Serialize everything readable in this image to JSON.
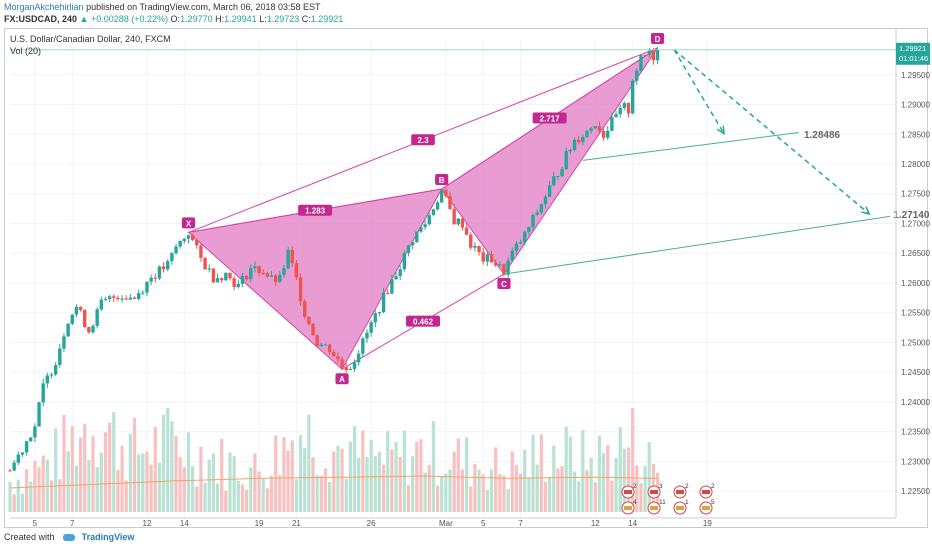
{
  "header": {
    "author": "MorganAkchehirlian",
    "published": "published on TradingView.com, March 06, 2018 03:58 EST",
    "symbol": "FX:USDCAD, 240",
    "change": "+0.00288 (+0.22%)",
    "ohlc": {
      "o_label": "O:",
      "o": "1.29770",
      "h_label": "H:",
      "h": "1.29941",
      "l_label": "L:",
      "l": "1.29723",
      "c_label": "C:",
      "c": "1.29921"
    },
    "last_price": "1.29921"
  },
  "legend": {
    "title": "U.S. Dollar/Canadian Dollar, 240, FXCM",
    "vol": "Vol (20)"
  },
  "footer": {
    "created_with": "Created with",
    "brand": "TradingView"
  },
  "colors": {
    "up": "#26a69a",
    "down": "#ef5350",
    "pattern_fill": "#e27bc3",
    "pattern_line": "#d146a8",
    "label_bg": "#c2288f",
    "trend": "#4cae8c",
    "target_arrow": "#26a69a"
  },
  "chart_data": {
    "type": "candlestick",
    "symbol": "USDCAD",
    "timeframe": "240",
    "ylim": [
      1.2215,
      1.2995
    ],
    "y_ticks": [
      "1.29500",
      "1.29000",
      "1.28500",
      "1.28000",
      "1.27500",
      "1.27000",
      "1.26500",
      "1.26000",
      "1.25500",
      "1.25000",
      "1.24500",
      "1.24000",
      "1.23500",
      "1.23000",
      "1.22500"
    ],
    "x_ticks": [
      "5",
      "7",
      "12",
      "14",
      "19",
      "21",
      "26",
      "Mar",
      "5",
      "7",
      "12",
      "14",
      "19"
    ],
    "price_labels": [
      "1.29921",
      "01:01:46"
    ],
    "x_range": [
      0,
      168
    ],
    "close_path": [
      [
        0,
        1.2285
      ],
      [
        6,
        1.236
      ],
      [
        8,
        1.2425
      ],
      [
        11,
        1.247
      ],
      [
        14,
        1.254
      ],
      [
        16,
        1.256
      ],
      [
        19,
        1.252
      ],
      [
        22,
        1.2565
      ],
      [
        26,
        1.258
      ],
      [
        30,
        1.2575
      ],
      [
        34,
        1.261
      ],
      [
        38,
        1.263
      ],
      [
        40,
        1.266
      ],
      [
        43,
        1.2685
      ],
      [
        46,
        1.264
      ],
      [
        49,
        1.261
      ],
      [
        52,
        1.2615
      ],
      [
        55,
        1.2595
      ],
      [
        58,
        1.2625
      ],
      [
        61,
        1.262
      ],
      [
        63,
        1.2605
      ],
      [
        65,
        1.2605
      ],
      [
        67,
        1.265
      ],
      [
        69,
        1.2605
      ],
      [
        71,
        1.255
      ],
      [
        74,
        1.25
      ],
      [
        77,
        1.249
      ],
      [
        80,
        1.246
      ],
      [
        82,
        1.246
      ],
      [
        85,
        1.25
      ],
      [
        88,
        1.2545
      ],
      [
        91,
        1.259
      ],
      [
        94,
        1.263
      ],
      [
        97,
        1.2675
      ],
      [
        100,
        1.27
      ],
      [
        104,
        1.2755
      ],
      [
        107,
        1.2705
      ],
      [
        109,
        1.27
      ],
      [
        111,
        1.2665
      ],
      [
        114,
        1.264
      ],
      [
        116,
        1.264
      ],
      [
        118,
        1.2625
      ],
      [
        119,
        1.262
      ],
      [
        121,
        1.265
      ],
      [
        124,
        1.268
      ],
      [
        127,
        1.272
      ],
      [
        130,
        1.276
      ],
      [
        133,
        1.28
      ],
      [
        136,
        1.284
      ],
      [
        139,
        1.2855
      ],
      [
        141,
        1.287
      ],
      [
        143,
        1.285
      ],
      [
        144,
        1.286
      ],
      [
        146,
        1.288
      ],
      [
        148,
        1.2895
      ],
      [
        149,
        1.289
      ],
      [
        150,
        1.2945
      ],
      [
        152,
        1.2975
      ],
      [
        154,
        1.299
      ],
      [
        155,
        1.298
      ],
      [
        156,
        1.2992
      ]
    ],
    "volume_path": [
      [
        0,
        3
      ],
      [
        10,
        5
      ],
      [
        20,
        9
      ],
      [
        30,
        6
      ],
      [
        40,
        7
      ],
      [
        50,
        5
      ],
      [
        60,
        4
      ],
      [
        70,
        8
      ],
      [
        80,
        6
      ],
      [
        90,
        5
      ],
      [
        100,
        6
      ],
      [
        110,
        5
      ],
      [
        120,
        4
      ],
      [
        130,
        6
      ],
      [
        140,
        5
      ],
      [
        150,
        7
      ],
      [
        156,
        4
      ]
    ],
    "volume_ma": [
      [
        0,
        2.0
      ],
      [
        20,
        2.3
      ],
      [
        40,
        2.6
      ],
      [
        60,
        2.8
      ],
      [
        80,
        2.9
      ],
      [
        100,
        3.0
      ],
      [
        120,
        2.8
      ],
      [
        140,
        2.9
      ],
      [
        156,
        2.8
      ]
    ],
    "pattern": {
      "points": [
        {
          "label": "X",
          "x": 43,
          "y": 1.2685
        },
        {
          "label": "A",
          "x": 80,
          "y": 1.2455
        },
        {
          "label": "B",
          "x": 104,
          "y": 1.2758
        },
        {
          "label": "C",
          "x": 119,
          "y": 1.2615
        },
        {
          "label": "D",
          "x": 156,
          "y": 1.2995
        }
      ],
      "ratios": [
        {
          "label": "2.3",
          "from": "X",
          "to": "D"
        },
        {
          "label": "1.283",
          "from": "X",
          "to": "B"
        },
        {
          "label": "2.717",
          "from": "B",
          "to": "D"
        },
        {
          "label": "0.462",
          "from": "A",
          "to": "C"
        }
      ]
    },
    "targets": [
      {
        "label": "1.28486",
        "value": 1.2849
      },
      {
        "label": "1.27140",
        "value": 1.2714
      }
    ],
    "trendlines": [
      {
        "from": [
          138,
          1.2806
        ],
        "to": [
          190,
          1.2853
        ]
      },
      {
        "from": [
          119,
          1.2615
        ],
        "to": [
          212,
          1.2712
        ]
      }
    ],
    "projection_arrows": [
      {
        "from": [
          160,
          1.2992
        ],
        "to": [
          172,
          1.2851
        ]
      },
      {
        "from": [
          160,
          1.2992
        ],
        "to": [
          207,
          1.2716
        ]
      }
    ],
    "economic_event_flags": [
      "2",
      "4",
      "3",
      "11",
      "2",
      "1",
      "2",
      "5"
    ]
  }
}
